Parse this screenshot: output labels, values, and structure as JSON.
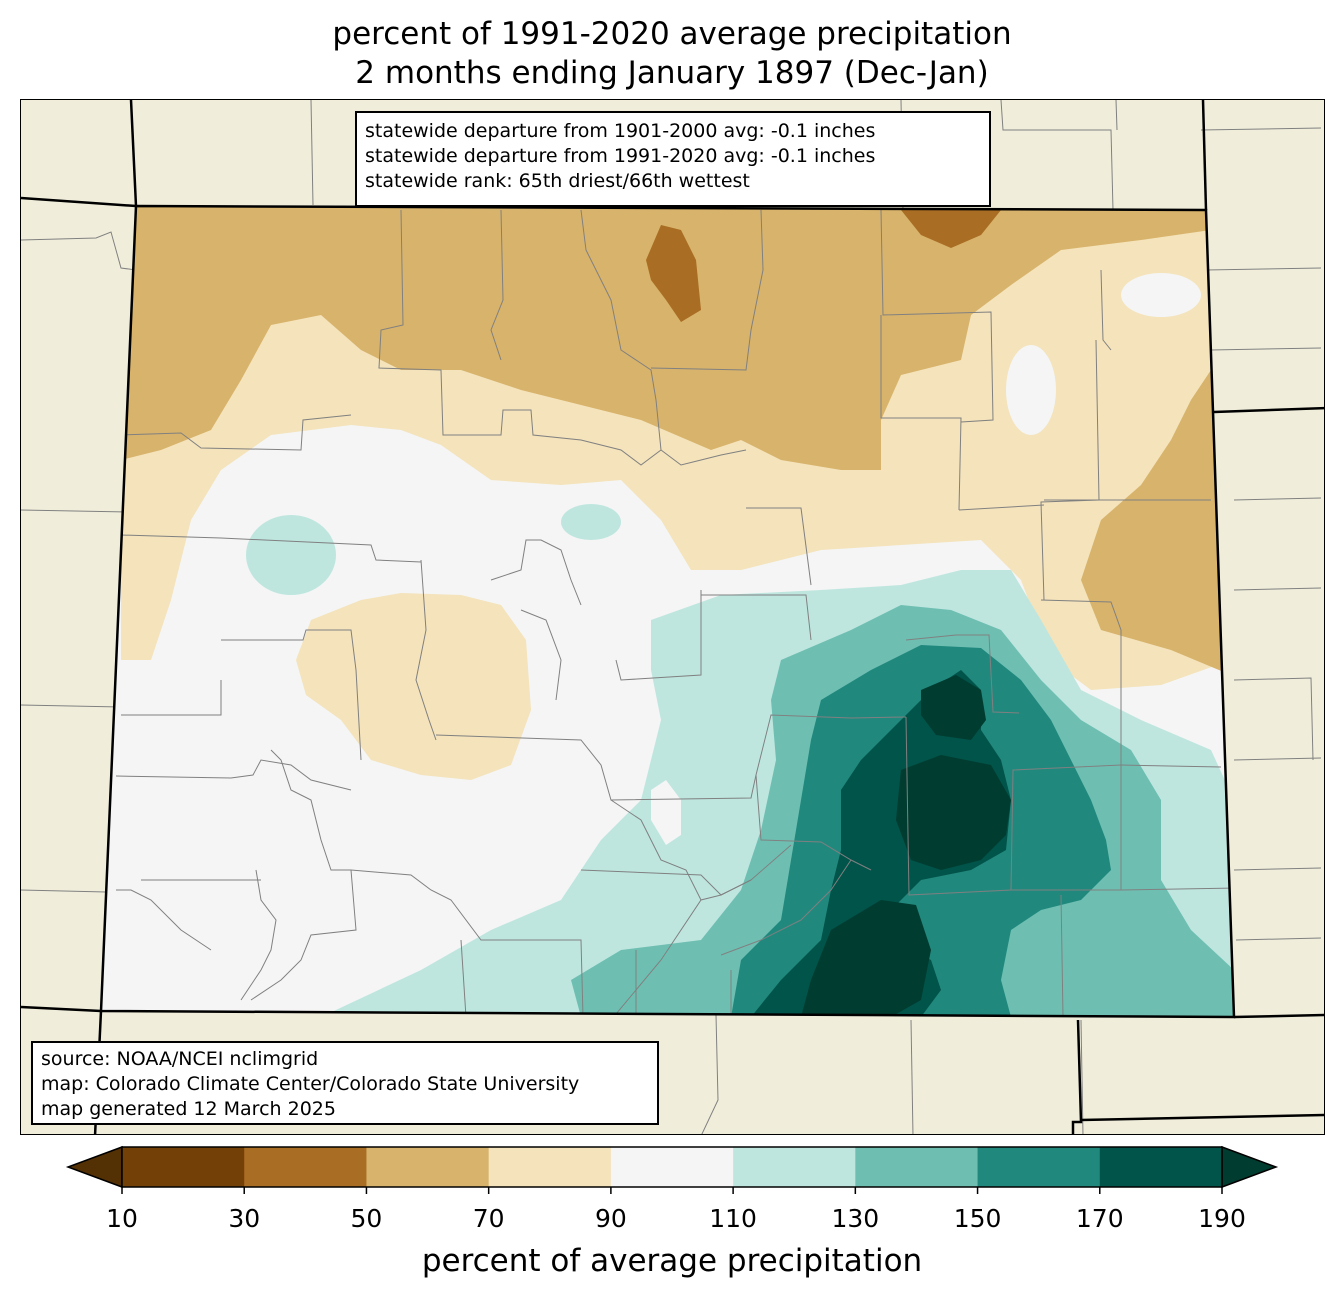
{
  "title": {
    "line1": "percent of 1991-2020 average precipitation",
    "line2": "2 months ending January 1897 (Dec-Jan)"
  },
  "stats": {
    "line1": "statewide departure from 1901-2000 avg: -0.1 inches",
    "line2": "statewide departure from 1991-2020 avg: -0.1 inches",
    "line3": "statewide rank: 65th driest/66th wettest"
  },
  "source": {
    "line1": "source: NOAA/NCEI nclimgrid",
    "line2": "map: Colorado Climate Center/Colorado State University",
    "line3": "map generated 12 March 2025"
  },
  "colorbar": {
    "label": "percent of average precipitation",
    "ticks": [
      "10",
      "30",
      "50",
      "70",
      "90",
      "110",
      "130",
      "150",
      "170",
      "190"
    ],
    "under_color": "#543005",
    "over_color": "#003c30",
    "colors": [
      "#734008",
      "#a96d24",
      "#d8b36b",
      "#f4e3bb",
      "#f4f5f4",
      "#bee6df",
      "#6ebfb2",
      "#21887e",
      "#01544a"
    ]
  },
  "map_colors": {
    "background": "#f0eedb",
    "border": "#000000",
    "county_lines": "#808080"
  }
}
